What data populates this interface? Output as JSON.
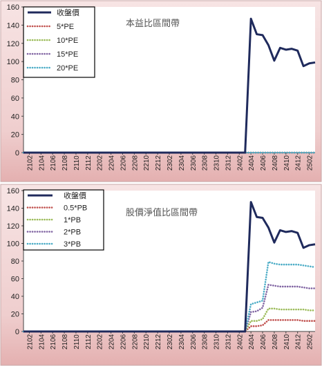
{
  "chart_data": [
    {
      "type": "line",
      "title": "本益比區間帶",
      "xlabel": "",
      "ylabel": "",
      "ylim": [
        0,
        160
      ],
      "yticks": [
        0,
        20,
        40,
        60,
        80,
        100,
        120,
        140,
        160
      ],
      "x_tick_labels": [
        "2102",
        "2104",
        "2106",
        "2108",
        "2110",
        "2112",
        "2202",
        "2204",
        "2206",
        "2208",
        "2210",
        "2212",
        "2302",
        "2304",
        "2306",
        "2308",
        "2310",
        "2312",
        "2402",
        "2404",
        "2406",
        "2408",
        "2410",
        "2412",
        "2502"
      ],
      "x_start": "2101",
      "x_end": "2503",
      "legend_position": "top-left",
      "series": [
        {
          "name": "收盤價",
          "color": "#1f2a5c",
          "style": "solid",
          "points": [
            [
              "2101",
              0
            ],
            [
              "2402",
              0
            ],
            [
              "2403",
              0
            ],
            [
              "2404",
              147
            ],
            [
              "2405",
              130
            ],
            [
              "2406",
              129
            ],
            [
              "2407",
              118
            ],
            [
              "2408",
              101
            ],
            [
              "2409",
              115
            ],
            [
              "2410",
              113
            ],
            [
              "2411",
              114
            ],
            [
              "2412",
              112
            ],
            [
              "2501",
              95
            ],
            [
              "2502",
              98
            ],
            [
              "2503",
              99
            ]
          ]
        },
        {
          "name": "5*PE",
          "color": "#c0504d",
          "style": "dotted",
          "points": [
            [
              "2101",
              0
            ],
            [
              "2503",
              0
            ]
          ]
        },
        {
          "name": "10*PE",
          "color": "#9bbb59",
          "style": "dotted",
          "points": [
            [
              "2101",
              0
            ],
            [
              "2503",
              0
            ]
          ]
        },
        {
          "name": "15*PE",
          "color": "#8064a2",
          "style": "dotted",
          "points": [
            [
              "2101",
              0
            ],
            [
              "2503",
              0
            ]
          ]
        },
        {
          "name": "20*PE",
          "color": "#4bacc6",
          "style": "dotted",
          "points": [
            [
              "2101",
              0
            ],
            [
              "2503",
              0
            ]
          ]
        }
      ]
    },
    {
      "type": "line",
      "title": "股價淨值比區間帶",
      "xlabel": "",
      "ylabel": "",
      "ylim": [
        0,
        160
      ],
      "yticks": [
        0,
        20,
        40,
        60,
        80,
        100,
        120,
        140,
        160
      ],
      "x_tick_labels": [
        "2102",
        "2104",
        "2106",
        "2108",
        "2110",
        "2112",
        "2202",
        "2204",
        "2206",
        "2208",
        "2210",
        "2212",
        "2302",
        "2304",
        "2306",
        "2308",
        "2310",
        "2312",
        "2402",
        "2404",
        "2406",
        "2408",
        "2410",
        "2412",
        "2502"
      ],
      "x_start": "2101",
      "x_end": "2503",
      "legend_position": "top-left",
      "series": [
        {
          "name": "收盤價",
          "color": "#1f2a5c",
          "style": "solid",
          "points": [
            [
              "2101",
              0
            ],
            [
              "2402",
              0
            ],
            [
              "2403",
              0
            ],
            [
              "2404",
              147
            ],
            [
              "2405",
              130
            ],
            [
              "2406",
              129
            ],
            [
              "2407",
              118
            ],
            [
              "2408",
              101
            ],
            [
              "2409",
              115
            ],
            [
              "2410",
              113
            ],
            [
              "2411",
              114
            ],
            [
              "2412",
              112
            ],
            [
              "2501",
              95
            ],
            [
              "2502",
              98
            ],
            [
              "2503",
              99
            ]
          ]
        },
        {
          "name": "0.5*PB",
          "color": "#c0504d",
          "style": "dotted",
          "points": [
            [
              "2101",
              0
            ],
            [
              "2403",
              0
            ],
            [
              "2404",
              6
            ],
            [
              "2405",
              6
            ],
            [
              "2406",
              7
            ],
            [
              "2407",
              13
            ],
            [
              "2408",
              13
            ],
            [
              "2409",
              13
            ],
            [
              "2410",
              13
            ],
            [
              "2411",
              13
            ],
            [
              "2412",
              13
            ],
            [
              "2501",
              12
            ],
            [
              "2502",
              12
            ],
            [
              "2503",
              12
            ]
          ]
        },
        {
          "name": "1*PB",
          "color": "#9bbb59",
          "style": "dotted",
          "points": [
            [
              "2101",
              0
            ],
            [
              "2403",
              0
            ],
            [
              "2404",
              12
            ],
            [
              "2405",
              12
            ],
            [
              "2406",
              14
            ],
            [
              "2407",
              26
            ],
            [
              "2408",
              26
            ],
            [
              "2409",
              25
            ],
            [
              "2410",
              25
            ],
            [
              "2411",
              25
            ],
            [
              "2412",
              25
            ],
            [
              "2501",
              25
            ],
            [
              "2502",
              24
            ],
            [
              "2503",
              24
            ]
          ]
        },
        {
          "name": "2*PB",
          "color": "#8064a2",
          "style": "dotted",
          "points": [
            [
              "2101",
              0
            ],
            [
              "2403",
              0
            ],
            [
              "2404",
              22
            ],
            [
              "2405",
              23
            ],
            [
              "2406",
              27
            ],
            [
              "2407",
              53
            ],
            [
              "2408",
              52
            ],
            [
              "2409",
              51
            ],
            [
              "2410",
              51
            ],
            [
              "2411",
              51
            ],
            [
              "2412",
              51
            ],
            [
              "2501",
              50
            ],
            [
              "2502",
              49
            ],
            [
              "2503",
              49
            ]
          ]
        },
        {
          "name": "3*PB",
          "color": "#4bacc6",
          "style": "dotted",
          "points": [
            [
              "2101",
              0
            ],
            [
              "2403",
              0
            ],
            [
              "2404",
              31
            ],
            [
              "2405",
              33
            ],
            [
              "2406",
              35
            ],
            [
              "2407",
              79
            ],
            [
              "2408",
              77
            ],
            [
              "2409",
              76
            ],
            [
              "2410",
              76
            ],
            [
              "2411",
              76
            ],
            [
              "2412",
              76
            ],
            [
              "2501",
              75
            ],
            [
              "2502",
              74
            ],
            [
              "2503",
              73
            ]
          ]
        }
      ]
    }
  ]
}
